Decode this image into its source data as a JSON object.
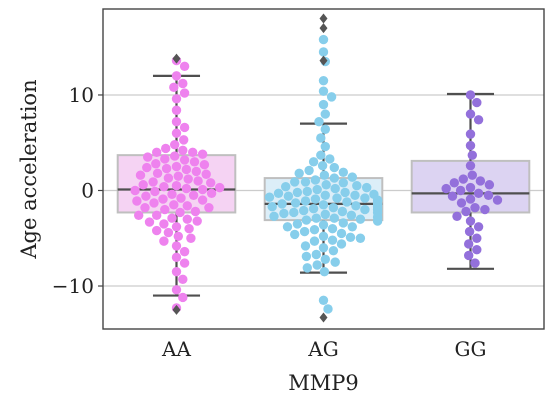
{
  "chart_data": {
    "type": "boxplot-swarm",
    "xlabel": "MMP9",
    "ylabel": "Age acceleration",
    "ylim": [
      -14.5,
      19
    ],
    "yticks": [
      -10,
      0,
      10
    ],
    "ytick_labels": [
      "−10",
      "0",
      "10"
    ],
    "grid": "horizontal",
    "categories": [
      "AA",
      "AG",
      "GG"
    ],
    "groups": [
      {
        "name": "AA",
        "box_color": "#F5D3F3",
        "point_color": "#EE82EE",
        "q1": -2.3,
        "median": 0.1,
        "q3": 3.7,
        "whisker_low": -11.0,
        "whisker_high": 12.0,
        "points": [
          13.6,
          13.0,
          12.0,
          11.2,
          10.8,
          10.2,
          9.6,
          8.4,
          7.2,
          6.6,
          6.0,
          5.3,
          4.8,
          4.4,
          4.0,
          4.0,
          3.8,
          3.6,
          3.3,
          3.0,
          2.8,
          2.5,
          2.3,
          2.0,
          1.8,
          1.6,
          1.3,
          1.0,
          0.8,
          0.5,
          0.3,
          0.1,
          -0.1,
          -0.3,
          -0.5,
          -0.8,
          -1.0,
          -1.3,
          -1.5,
          -1.8,
          -2.0,
          -2.3,
          -2.6,
          -2.9,
          -3.2,
          -3.5,
          -3.8,
          -4.0,
          -4.4,
          -4.8,
          -5.3,
          -5.8,
          -6.4,
          -7.0,
          -7.6,
          -8.5,
          -9.3,
          -10.4,
          -11.2,
          -12.3,
          0.9,
          1.7,
          2.7,
          -0.6,
          -1.6,
          -2.6,
          0.4,
          -3.0,
          2.2,
          -1.1,
          1.2,
          0.0,
          3.5,
          -4.2,
          2.4,
          -2.2,
          0.6,
          -0.9,
          1.5,
          -1.8,
          3.2,
          -3.3,
          4.2,
          -5.0,
          0.2,
          -0.4
        ],
        "outliers": [
          13.8,
          -12.5
        ]
      },
      {
        "name": "AG",
        "box_color": "#DCEEF8",
        "point_color": "#87CEEB",
        "q1": -3.1,
        "median": -1.4,
        "q3": 1.3,
        "whisker_low": -8.6,
        "whisker_high": 7.0,
        "points": [
          15.8,
          14.5,
          13.5,
          11.5,
          10.4,
          9.8,
          9.0,
          8.0,
          7.2,
          6.4,
          5.5,
          4.6,
          3.7,
          3.0,
          2.4,
          1.9,
          1.3,
          0.9,
          0.6,
          0.2,
          -0.2,
          -0.5,
          -0.8,
          -1.1,
          -1.4,
          -1.7,
          -2.0,
          -2.3,
          -2.6,
          -2.9,
          -3.2,
          -3.5,
          -3.8,
          -4.1,
          -4.5,
          -4.9,
          -5.3,
          -5.8,
          -6.3,
          -6.9,
          -7.5,
          -8.1,
          -8.5,
          -11.5,
          -12.4,
          -0.5,
          -1.2,
          -1.9,
          -2.4,
          0.4,
          1.1,
          -3.0,
          -0.9,
          0.8,
          -1.5,
          -2.1,
          -0.3,
          1.6,
          -4.0,
          -2.7,
          0.1,
          -1.0,
          -1.7,
          -3.4,
          2.1,
          -5.0,
          -0.6,
          -2.2,
          0.5,
          -4.6,
          -1.3,
          -6.0,
          1.4,
          -3.8,
          -0.1,
          -2.5,
          -1.8,
          -7.2,
          2.6,
          -0.8,
          -5.6,
          0.3,
          -3.1,
          -1.6,
          -2.8,
          -4.3,
          0.9,
          -6.7,
          -0.4,
          -2.0,
          1.8,
          -3.6,
          -1.1,
          -5.2,
          -0.7,
          -1.4,
          -2.3,
          -4.8,
          3.3,
          -7.8,
          -0.2,
          -2.9
        ],
        "outliers": [
          18.0,
          17.0,
          13.6,
          -13.3
        ]
      },
      {
        "name": "GG",
        "box_color": "#DCD3F2",
        "point_color": "#9370DB",
        "q1": -2.3,
        "median": -0.3,
        "q3": 3.1,
        "whisker_low": -8.2,
        "whisker_high": 10.1,
        "points": [
          10.0,
          9.2,
          8.0,
          7.4,
          5.9,
          4.7,
          3.7,
          2.6,
          1.6,
          1.2,
          1.0,
          0.6,
          0.3,
          0.0,
          -0.3,
          -0.6,
          -0.9,
          -1.3,
          -1.8,
          -2.2,
          -2.7,
          -3.2,
          -3.8,
          -4.3,
          -5.0,
          -5.6,
          -6.2,
          -6.8,
          -7.6,
          0.8,
          -1.0,
          -2.0,
          0.2,
          -0.5
        ],
        "outliers": []
      }
    ]
  }
}
